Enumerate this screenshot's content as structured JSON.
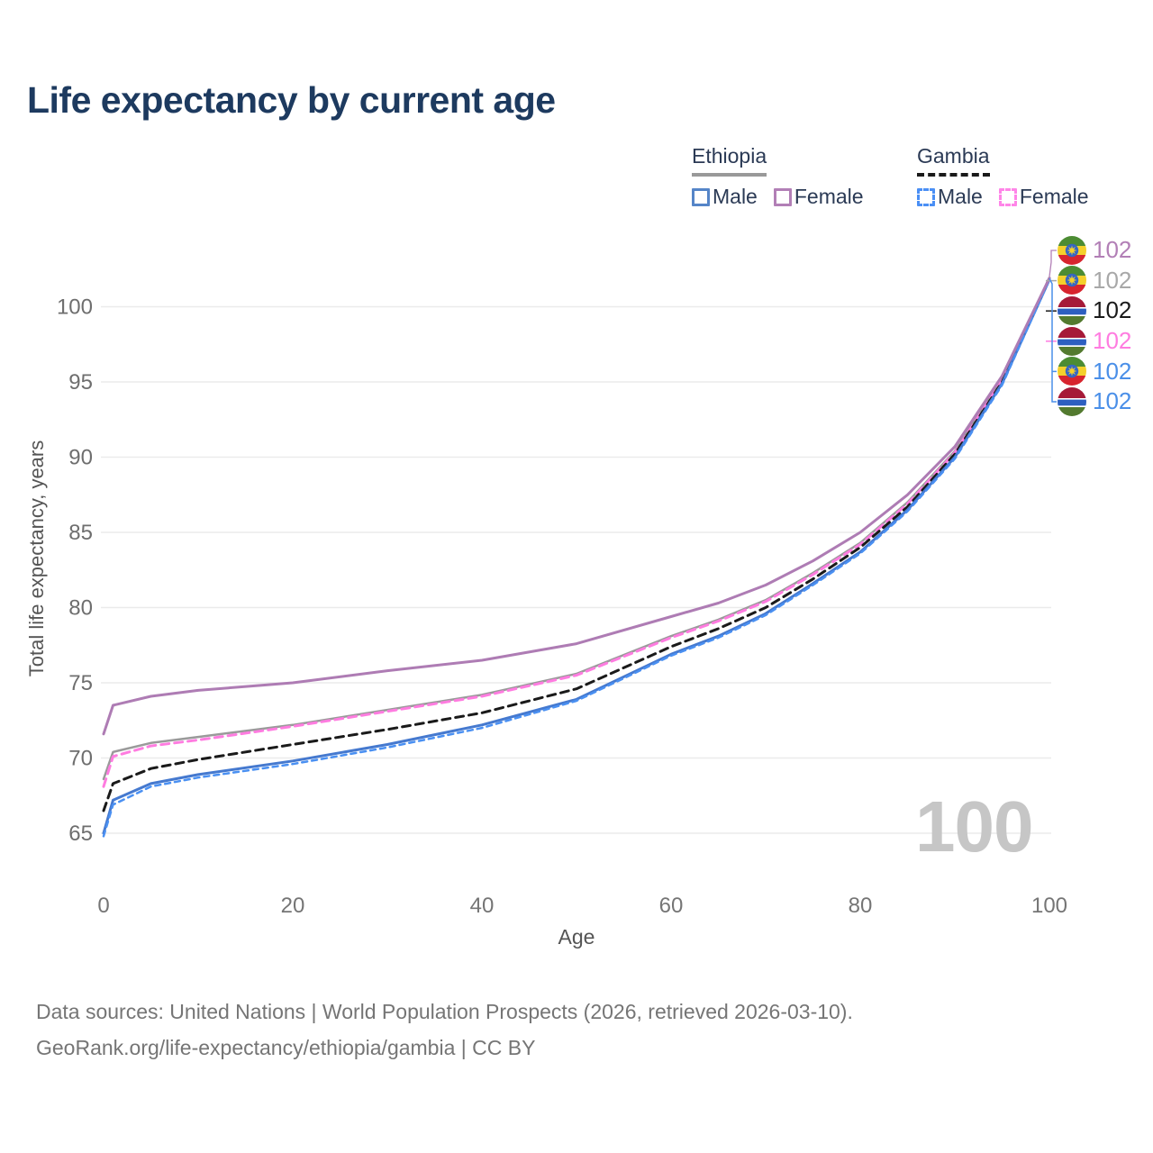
{
  "title": "Life expectancy by current age",
  "watermark": "100",
  "legend": {
    "groups": [
      {
        "label": "Ethiopia",
        "underline_color": "#999999",
        "underline_style": "solid",
        "items": [
          {
            "label": "Male",
            "color": "#5585c8",
            "dashed": false
          },
          {
            "label": "Female",
            "color": "#b27fb6",
            "dashed": false
          }
        ]
      },
      {
        "label": "Gambia",
        "underline_color": "#1a1a1a",
        "underline_style": "dashed",
        "items": [
          {
            "label": "Male",
            "color": "#4a8ff5",
            "dashed": true
          },
          {
            "label": "Female",
            "color": "#ff85e8",
            "dashed": true
          }
        ]
      }
    ]
  },
  "right_labels": [
    {
      "flag": "ethiopia",
      "value": "102",
      "color": "#b27fb6"
    },
    {
      "flag": "ethiopia",
      "value": "102",
      "color": "#a8a8a8"
    },
    {
      "flag": "gambia",
      "value": "102",
      "color": "#1a1a1a"
    },
    {
      "flag": "gambia",
      "value": "102",
      "color": "#ff7ce0"
    },
    {
      "flag": "ethiopia",
      "value": "102",
      "color": "#4a8fe8"
    },
    {
      "flag": "gambia",
      "value": "102",
      "color": "#4a8fe8"
    }
  ],
  "footer": {
    "line1": "Data sources: United Nations | World Population Prospects (2026, retrieved 2026-03-10).",
    "line2": "GeoRank.org/life-expectancy/ethiopia/gambia | CC BY"
  },
  "chart_data": {
    "type": "line",
    "title": "Life expectancy by current age",
    "xlabel": "Age",
    "ylabel": "Total life expectancy, years",
    "xlim": [
      0,
      100
    ],
    "ylim": [
      63.5,
      103
    ],
    "xticks": [
      0,
      20,
      40,
      60,
      80,
      100
    ],
    "yticks": [
      65,
      70,
      75,
      80,
      85,
      90,
      95,
      100
    ],
    "grid": "horizontal",
    "legend_position": "top-right",
    "hovered_age": 100,
    "x": [
      0,
      1,
      5,
      10,
      20,
      30,
      40,
      50,
      60,
      65,
      70,
      75,
      80,
      85,
      90,
      95,
      100
    ],
    "series": [
      {
        "name": "Ethiopia Female",
        "country": "Ethiopia",
        "sex": "Female",
        "color": "#ae7cb4",
        "dash": null,
        "width": 3,
        "values": [
          71.6,
          73.5,
          74.1,
          74.5,
          75.0,
          75.8,
          76.5,
          77.6,
          79.4,
          80.3,
          81.5,
          83.1,
          85.0,
          87.5,
          90.7,
          95.4,
          101.9
        ],
        "end_label": "102"
      },
      {
        "name": "Ethiopia Both sexes",
        "country": "Ethiopia",
        "sex": "Both",
        "color": "#9a9a9a",
        "dash": null,
        "width": 2.5,
        "values": [
          68.6,
          70.4,
          71.0,
          71.4,
          72.2,
          73.2,
          74.2,
          75.6,
          78.1,
          79.2,
          80.5,
          82.3,
          84.3,
          87.0,
          90.4,
          95.2,
          101.9
        ],
        "end_label": "102"
      },
      {
        "name": "Gambia Female",
        "country": "Gambia",
        "sex": "Female",
        "color": "#ff7ce0",
        "dash": "9 6",
        "width": 3,
        "values": [
          68.1,
          70.1,
          70.8,
          71.2,
          72.1,
          73.1,
          74.1,
          75.5,
          78.0,
          79.1,
          80.4,
          82.2,
          84.2,
          86.9,
          90.3,
          95.1,
          101.9
        ],
        "end_label": "102"
      },
      {
        "name": "Gambia Both sexes",
        "country": "Gambia",
        "sex": "Both",
        "color": "#1a1a1a",
        "dash": "9 6",
        "width": 3,
        "values": [
          66.5,
          68.3,
          69.3,
          69.9,
          70.9,
          71.9,
          73.0,
          74.6,
          77.4,
          78.6,
          80.0,
          81.9,
          84.0,
          86.7,
          90.2,
          95.0,
          101.9
        ],
        "end_label": "102"
      },
      {
        "name": "Ethiopia Male",
        "country": "Ethiopia",
        "sex": "Male",
        "color": "#4579cf",
        "dash": null,
        "width": 3,
        "values": [
          65.0,
          67.2,
          68.3,
          68.9,
          69.8,
          70.9,
          72.2,
          73.9,
          76.9,
          78.1,
          79.6,
          81.6,
          83.7,
          86.5,
          90.0,
          94.9,
          101.8
        ],
        "end_label": "102"
      },
      {
        "name": "Gambia Male",
        "country": "Gambia",
        "sex": "Male",
        "color": "#4a90f2",
        "dash": "6 5",
        "width": 2.5,
        "values": [
          64.8,
          66.9,
          68.1,
          68.7,
          69.6,
          70.7,
          72.0,
          73.8,
          76.8,
          78.0,
          79.5,
          81.5,
          83.6,
          86.4,
          89.9,
          94.8,
          101.8
        ],
        "end_label": "102"
      }
    ]
  }
}
